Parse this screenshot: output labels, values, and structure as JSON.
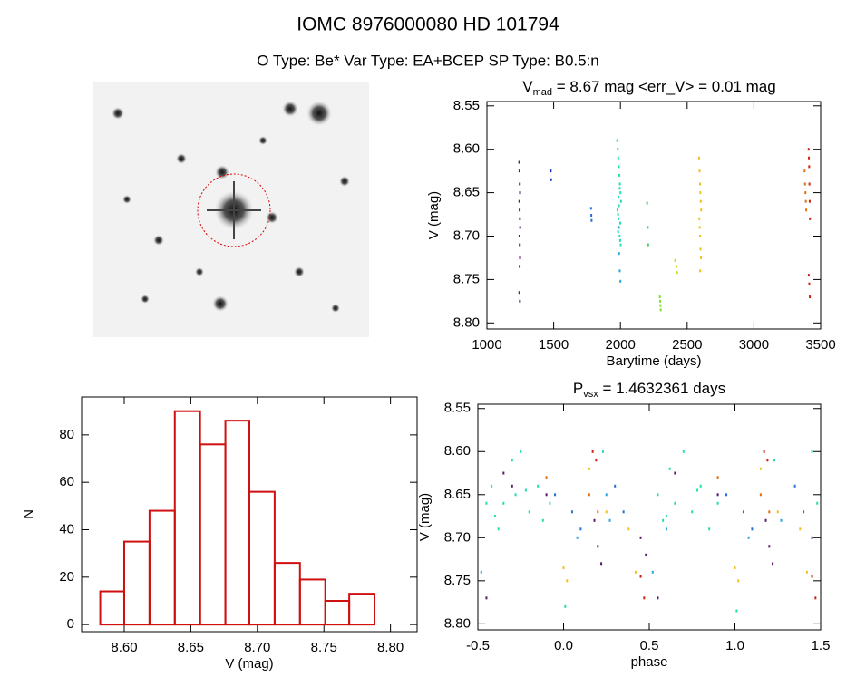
{
  "header": {
    "title": "IOMC 8976000080    HD 101794",
    "subtitle": "O Type: Be*   Var Type: EA+BCEP   SP Type: B0.5:n"
  },
  "chart_data": [
    {
      "type": "scatter",
      "title": {
        "main": "V",
        "sub": "mad",
        "rest": " = 8.67 mag <err_V> = 0.01 mag"
      },
      "xlabel": "Barytime (days)",
      "ylabel": "V (mag)",
      "xlim": [
        1000,
        3500
      ],
      "xticks": [
        1000,
        1500,
        2000,
        2500,
        3000,
        3500
      ],
      "ylim": [
        8.807,
        8.545
      ],
      "yticks": [
        8.55,
        {
          "value": 8.6,
          "label": "8.60"
        },
        8.65,
        {
          "value": 8.7,
          "label": "8.70"
        },
        8.75,
        {
          "value": 8.8,
          "label": "8.80"
        }
      ],
      "series": [
        {
          "color": "#5a1a6e",
          "x": [
            1242,
            1244,
            1246,
            1248,
            1243,
            1245,
            1247,
            1249,
            1244,
            1246,
            1248,
            1245,
            1243,
            1247
          ],
          "values": [
            8.615,
            8.625,
            8.64,
            8.65,
            8.66,
            8.67,
            8.68,
            8.69,
            8.7,
            8.71,
            8.725,
            8.735,
            8.765,
            8.775
          ]
        },
        {
          "color": "#1a2ab8",
          "x": [
            1478,
            1480
          ],
          "values": [
            8.625,
            8.635
          ]
        },
        {
          "color": "#2470d8",
          "x": [
            1780,
            1782,
            1784
          ],
          "values": [
            8.668,
            8.676,
            8.682
          ]
        },
        {
          "color": "#20e0b0",
          "x": [
            1976,
            1980,
            1984,
            1988,
            1992,
            1996,
            2000,
            2004,
            1978,
            1982,
            1986,
            1990,
            1994,
            1998,
            2002,
            1985,
            1995,
            1989,
            1999,
            1983
          ],
          "values": [
            8.59,
            8.6,
            8.61,
            8.62,
            8.63,
            8.64,
            8.65,
            8.66,
            8.67,
            8.675,
            8.68,
            8.69,
            8.7,
            8.705,
            8.71,
            8.655,
            8.645,
            8.665,
            8.685,
            8.695
          ]
        },
        {
          "color": "#2aa6e0",
          "x": [
            1985,
            1990,
            1995,
            2000
          ],
          "values": [
            8.69,
            8.72,
            8.74,
            8.752
          ]
        },
        {
          "color": "#40d060",
          "x": [
            2200,
            2205,
            2208
          ],
          "values": [
            8.662,
            8.69,
            8.71
          ]
        },
        {
          "color": "#80e030",
          "x": [
            2295,
            2298,
            2300,
            2302
          ],
          "values": [
            8.77,
            8.775,
            8.78,
            8.785
          ]
        },
        {
          "color": "#c0e020",
          "x": [
            2410,
            2420,
            2425
          ],
          "values": [
            8.728,
            8.735,
            8.742
          ]
        },
        {
          "color": "#f0c020",
          "x": [
            2590,
            2593,
            2596,
            2599,
            2602,
            2605,
            2591,
            2594,
            2597,
            2600,
            2603,
            2598
          ],
          "values": [
            8.61,
            8.625,
            8.64,
            8.65,
            8.66,
            8.67,
            8.68,
            8.69,
            8.7,
            8.715,
            8.725,
            8.74
          ]
        },
        {
          "color": "#e07010",
          "x": [
            3380,
            3383,
            3386,
            3389,
            3392
          ],
          "values": [
            8.625,
            8.64,
            8.65,
            8.66,
            8.67
          ]
        },
        {
          "color": "#d02010",
          "x": [
            3410,
            3412,
            3414,
            3416,
            3418,
            3420,
            3411,
            3415,
            3419
          ],
          "values": [
            8.6,
            8.61,
            8.62,
            8.64,
            8.66,
            8.68,
            8.745,
            8.755,
            8.77
          ]
        }
      ]
    },
    {
      "type": "histogram",
      "xlabel": "V (mag)",
      "ylabel": "N",
      "color": "#d01010",
      "bins": [
        8.582,
        8.6,
        8.619,
        8.638,
        8.657,
        8.676,
        8.694,
        8.713,
        8.732,
        8.751,
        8.769,
        8.788
      ],
      "values": [
        14,
        35,
        48,
        90,
        76,
        86,
        56,
        26,
        19,
        10,
        13
      ],
      "xlim": [
        8.568,
        8.82
      ],
      "xticks": [
        {
          "value": 8.6,
          "label": "8.60"
        },
        8.65,
        {
          "value": 8.7,
          "label": "8.70"
        },
        8.75,
        {
          "value": 8.8,
          "label": "8.80"
        }
      ],
      "ylim": [
        -3,
        96
      ],
      "yticks": [
        0,
        20,
        40,
        60,
        80
      ]
    },
    {
      "type": "scatter",
      "title": {
        "main": "P",
        "sub": "vsx",
        "rest": " = 1.4632361 days"
      },
      "xlabel": "phase",
      "ylabel": "V (mag)",
      "xlim": [
        -0.5,
        1.5
      ],
      "xticks": [
        -0.5,
        {
          "value": 0,
          "label": "0.0"
        },
        0.5,
        {
          "value": 1,
          "label": "1.0"
        },
        1.5
      ],
      "ylim": [
        8.807,
        8.545
      ],
      "yticks": [
        8.55,
        {
          "value": 8.6,
          "label": "8.60"
        },
        8.65,
        {
          "value": 8.7,
          "label": "8.70"
        },
        8.75,
        {
          "value": 8.8,
          "label": "8.80"
        }
      ],
      "series": [
        {
          "color": "#20e0b0",
          "x": [
            -0.45,
            -0.42,
            -0.38,
            -0.35,
            -0.3,
            -0.28,
            -0.25,
            -0.2,
            -0.15,
            -0.12,
            -0.08,
            -0.4,
            -0.22,
            0.55,
            0.58,
            0.62,
            0.65,
            0.7,
            0.75,
            0.8,
            0.85,
            0.9,
            0.6,
            0.78,
            0.01,
            1.01,
            1.45,
            1.48,
            0.23,
            1.23
          ],
          "values": [
            8.66,
            8.64,
            8.69,
            8.66,
            8.61,
            8.65,
            8.6,
            8.67,
            8.64,
            8.68,
            8.66,
            8.675,
            8.645,
            8.65,
            8.68,
            8.62,
            8.66,
            8.6,
            8.67,
            8.64,
            8.69,
            8.66,
            8.675,
            8.645,
            8.78,
            8.785,
            8.6,
            8.66,
            8.6,
            8.61
          ]
        },
        {
          "color": "#5a1a6e",
          "x": [
            -0.35,
            -0.3,
            -0.1,
            -0.45,
            0.18,
            0.2,
            0.22,
            0.45,
            0.48,
            0.55,
            0.65,
            0.9,
            1.18,
            1.2,
            1.22,
            1.45
          ],
          "values": [
            8.625,
            8.64,
            8.65,
            8.77,
            8.68,
            8.71,
            8.73,
            8.7,
            8.72,
            8.77,
            8.625,
            8.65,
            8.68,
            8.71,
            8.73,
            8.7
          ]
        },
        {
          "color": "#2470d8",
          "x": [
            -0.05,
            0.05,
            0.1,
            0.3,
            0.35,
            0.95,
            1.05,
            1.1,
            1.35,
            1.4
          ],
          "values": [
            8.65,
            8.67,
            8.69,
            8.64,
            8.67,
            8.65,
            8.67,
            8.69,
            8.64,
            8.67
          ]
        },
        {
          "color": "#2aa6e0",
          "x": [
            -0.48,
            0.08,
            0.25,
            0.27,
            0.52,
            0.6,
            1.08,
            1.27
          ],
          "values": [
            8.74,
            8.7,
            8.65,
            8.68,
            8.74,
            8.69,
            8.7,
            8.68
          ]
        },
        {
          "color": "#f0c020",
          "x": [
            0.0,
            0.02,
            0.15,
            0.25,
            0.38,
            0.42,
            1.0,
            1.02,
            1.15,
            1.25,
            1.38,
            1.42
          ],
          "values": [
            8.735,
            8.75,
            8.62,
            8.67,
            8.69,
            8.74,
            8.735,
            8.75,
            8.62,
            8.67,
            8.69,
            8.74
          ]
        },
        {
          "color": "#e07010",
          "x": [
            -0.1,
            0.15,
            0.2,
            0.9,
            1.15,
            1.2
          ],
          "values": [
            8.63,
            8.65,
            8.67,
            8.63,
            8.65,
            8.67
          ]
        },
        {
          "color": "#d02010",
          "x": [
            0.17,
            0.19,
            0.45,
            0.47,
            1.17,
            1.19,
            1.45,
            1.47
          ],
          "values": [
            8.6,
            8.61,
            8.745,
            8.77,
            8.6,
            8.61,
            8.745,
            8.77
          ]
        }
      ]
    }
  ]
}
